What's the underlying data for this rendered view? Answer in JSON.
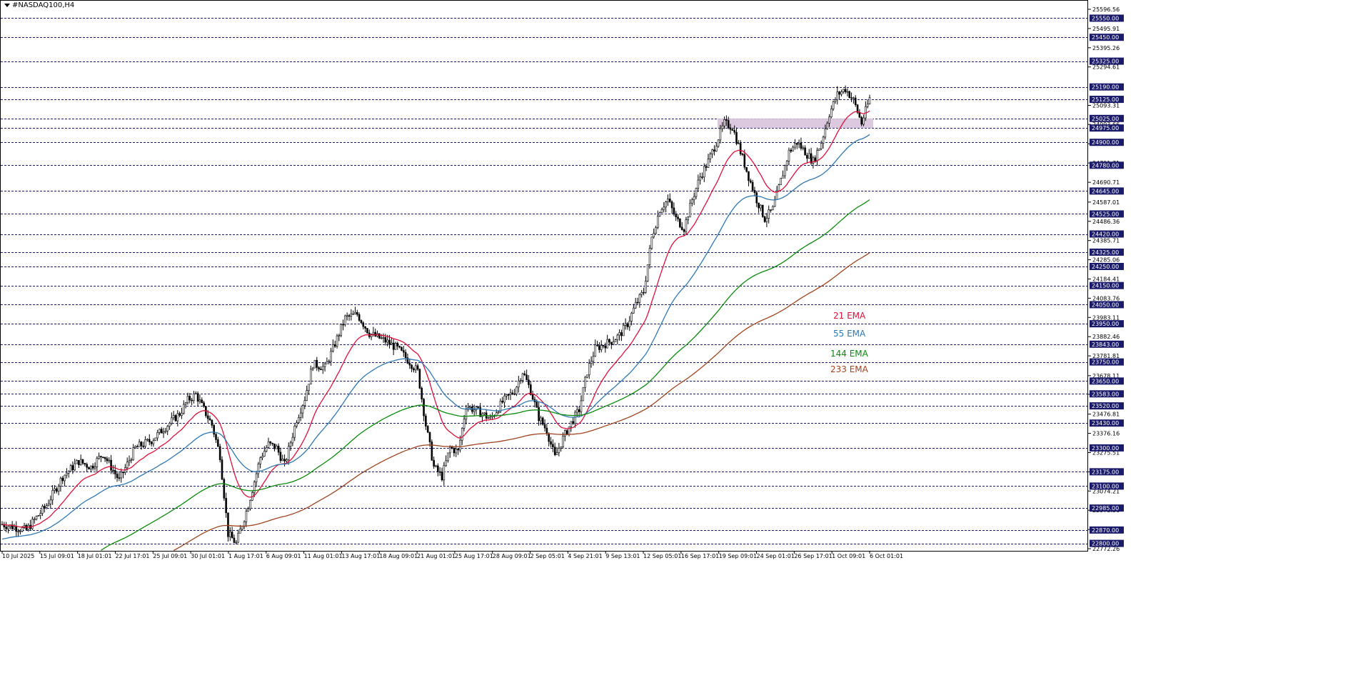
{
  "window": {
    "title": "#NASDAQ100,H4"
  },
  "colors": {
    "ema21": "#e0103a",
    "ema55": "#2f78b4",
    "ema144": "#0a8a0a",
    "ema233": "#a0441f",
    "zone": "#d9c3dc",
    "grid": "#1a1a6a",
    "candle": "#000000"
  },
  "legend": [
    {
      "name": "21 EMA",
      "color": "#e0103a"
    },
    {
      "name": "55 EMA",
      "color": "#2f78b4"
    },
    {
      "name": "144 EMA",
      "color": "#0a8a0a"
    },
    {
      "name": "233 EMA",
      "color": "#a0441f"
    }
  ],
  "chart_data": {
    "type": "candlestick",
    "symbol": "#NASDAQ100",
    "timeframe": "H4",
    "ylim": [
      22772.26,
      25596.56
    ],
    "price_scale_labels": [
      "25596.56",
      "25495.91",
      "25395.26",
      "25294.61",
      "25093.31",
      "24993.66",
      "24892.36",
      "24791.71",
      "24690.71",
      "24587.01",
      "24486.36",
      "24385.71",
      "24285.06",
      "24184.41",
      "24083.76",
      "23983.11",
      "23882.46",
      "23781.81",
      "23678.11",
      "23580.51",
      "23476.81",
      "23376.16",
      "23275.51",
      "23174.86",
      "23074.21",
      "22973.56",
      "22872.91",
      "22772.26"
    ],
    "level_lines": [
      25550.0,
      25450.0,
      25325.0,
      25190.0,
      25125.0,
      25025.0,
      24975.0,
      24900.0,
      24780.0,
      24645.0,
      24525.0,
      24420.0,
      24325.0,
      24250.0,
      24150.0,
      24050.0,
      23950.0,
      23843.0,
      23750.0,
      23650.0,
      23583.0,
      23520.0,
      23430.0,
      23300.0,
      23175.0,
      23100.0,
      22985.0,
      22870.0,
      22800.0
    ],
    "x_labels": [
      "10 Jul 2025",
      "15 Jul 09:01",
      "18 Jul 01:01",
      "22 Jul 17:01",
      "25 Jul 09:01",
      "30 Jul 01:01",
      "1 Aug 17:01",
      "6 Aug 09:01",
      "11 Aug 01:01",
      "13 Aug 17:01",
      "18 Aug 09:01",
      "21 Aug 01:01",
      "25 Aug 17:01",
      "28 Aug 09:01",
      "2 Sep 05:01",
      "4 Sep 21:01",
      "9 Sep 13:01",
      "12 Sep 05:01",
      "16 Sep 17:01",
      "19 Sep 09:01",
      "24 Sep 01:01",
      "26 Sep 17:01",
      "1 Oct 09:01",
      "6 Oct 01:01"
    ],
    "zone": {
      "low": 24975.0,
      "high": 25025.0
    },
    "price_path": [
      [
        0,
        22900
      ],
      [
        12,
        22870
      ],
      [
        22,
        23000
      ],
      [
        30,
        23150
      ],
      [
        38,
        23230
      ],
      [
        44,
        23200
      ],
      [
        50,
        23270
      ],
      [
        58,
        23130
      ],
      [
        66,
        23300
      ],
      [
        74,
        23340
      ],
      [
        82,
        23420
      ],
      [
        88,
        23480
      ],
      [
        92,
        23550
      ],
      [
        96,
        23580
      ],
      [
        104,
        23420
      ],
      [
        108,
        23260
      ],
      [
        112,
        22850
      ],
      [
        116,
        22800
      ],
      [
        122,
        23000
      ],
      [
        128,
        23250
      ],
      [
        132,
        23320
      ],
      [
        136,
        23300
      ],
      [
        140,
        23210
      ],
      [
        146,
        23450
      ],
      [
        150,
        23560
      ],
      [
        154,
        23740
      ],
      [
        160,
        23720
      ],
      [
        164,
        23820
      ],
      [
        170,
        23980
      ],
      [
        176,
        24000
      ],
      [
        182,
        23900
      ],
      [
        186,
        23880
      ],
      [
        190,
        23860
      ],
      [
        196,
        23820
      ],
      [
        202,
        23750
      ],
      [
        206,
        23700
      ],
      [
        210,
        23420
      ],
      [
        214,
        23200
      ],
      [
        218,
        23150
      ],
      [
        222,
        23300
      ],
      [
        226,
        23280
      ],
      [
        230,
        23520
      ],
      [
        234,
        23500
      ],
      [
        238,
        23480
      ],
      [
        242,
        23450
      ],
      [
        248,
        23540
      ],
      [
        254,
        23600
      ],
      [
        258,
        23700
      ],
      [
        262,
        23600
      ],
      [
        266,
        23460
      ],
      [
        270,
        23390
      ],
      [
        274,
        23250
      ],
      [
        278,
        23350
      ],
      [
        282,
        23430
      ],
      [
        286,
        23500
      ],
      [
        290,
        23700
      ],
      [
        294,
        23820
      ],
      [
        298,
        23840
      ],
      [
        302,
        23860
      ],
      [
        306,
        23890
      ],
      [
        310,
        23950
      ],
      [
        314,
        24050
      ],
      [
        318,
        24120
      ],
      [
        322,
        24400
      ],
      [
        326,
        24550
      ],
      [
        330,
        24600
      ],
      [
        334,
        24500
      ],
      [
        338,
        24450
      ],
      [
        342,
        24600
      ],
      [
        346,
        24720
      ],
      [
        350,
        24800
      ],
      [
        354,
        24900
      ],
      [
        358,
        25000
      ],
      [
        362,
        24980
      ],
      [
        366,
        24850
      ],
      [
        370,
        24720
      ],
      [
        374,
        24600
      ],
      [
        378,
        24500
      ],
      [
        382,
        24550
      ],
      [
        386,
        24700
      ],
      [
        390,
        24850
      ],
      [
        394,
        24900
      ],
      [
        398,
        24850
      ],
      [
        402,
        24800
      ],
      [
        406,
        24900
      ],
      [
        410,
        25050
      ],
      [
        414,
        25150
      ],
      [
        418,
        25180
      ],
      [
        422,
        25120
      ],
      [
        426,
        25000
      ],
      [
        430,
        25130
      ]
    ],
    "series": [
      {
        "name": "21 EMA"
      },
      {
        "name": "55 EMA"
      },
      {
        "name": "144 EMA"
      },
      {
        "name": "233 EMA"
      }
    ]
  }
}
